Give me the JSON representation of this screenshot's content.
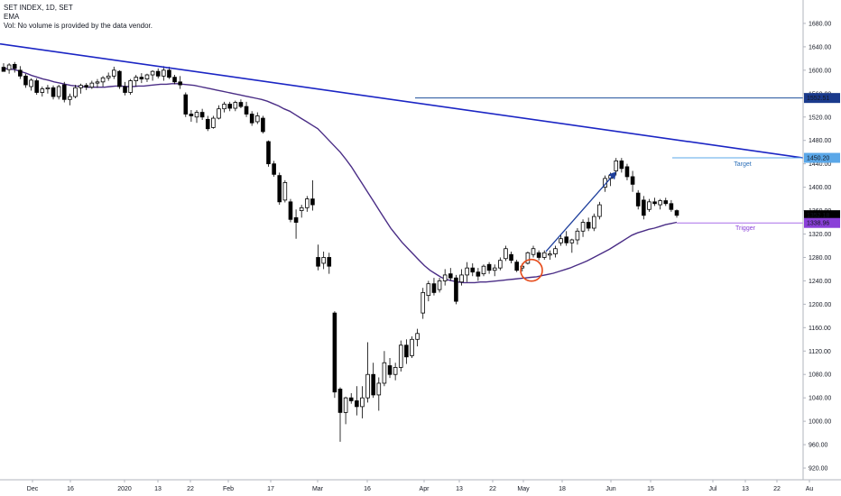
{
  "legend": {
    "symbol": "SET INDEX, 1D, SET",
    "indicator": "EMA",
    "volume_note": "Vol: No volume is provided by the data vendor."
  },
  "colors": {
    "up_candle": "#ffffff",
    "down_candle": "#000000",
    "candle_outline": "#000000",
    "ema_line": "#4a2d86",
    "trend_line": "#1b25c4",
    "level_line": "#1e4f9c",
    "target_line": "#5aa7e8",
    "trigger_line": "#a96ee8",
    "arrow": "#1e3f9c",
    "circle": "#e64a19",
    "price_tag_current": "#000000",
    "price_tag_ema": "#8a3fd8",
    "price_tag_level": "#1a3a8c",
    "price_tag_target": "#5aa7e8"
  },
  "chart_data": {
    "type": "candlestick",
    "title": "SET INDEX, 1D, SET",
    "ylim": [
      900,
      1720
    ],
    "y_ticks": [
      "1680.00",
      "1640.00",
      "1600.00",
      "1560.00",
      "1520.00",
      "1480.00",
      "1440.00",
      "1400.00",
      "1360.00",
      "1320.00",
      "1280.00",
      "1240.00",
      "1200.00",
      "1160.00",
      "1120.00",
      "1080.00",
      "1040.00",
      "1000.00",
      "960.00",
      "920.00"
    ],
    "x_ticks": [
      "Dec",
      "16",
      "2020",
      "13",
      "22",
      "Feb",
      "17",
      "Mar",
      "16",
      "Apr",
      "13",
      "22",
      "May",
      "18",
      "Jun",
      "15",
      "Jul",
      "13",
      "22",
      "Au"
    ],
    "candles": [
      {
        "o": 1605,
        "h": 1612,
        "l": 1600,
        "c": 1598
      },
      {
        "o": 1601,
        "h": 1612,
        "l": 1594,
        "c": 1609
      },
      {
        "o": 1610,
        "h": 1614,
        "l": 1596,
        "c": 1603
      },
      {
        "o": 1600,
        "h": 1607,
        "l": 1585,
        "c": 1590
      },
      {
        "o": 1590,
        "h": 1594,
        "l": 1570,
        "c": 1575
      },
      {
        "o": 1572,
        "h": 1586,
        "l": 1565,
        "c": 1583
      },
      {
        "o": 1582,
        "h": 1586,
        "l": 1558,
        "c": 1562
      },
      {
        "o": 1562,
        "h": 1572,
        "l": 1555,
        "c": 1568
      },
      {
        "o": 1568,
        "h": 1575,
        "l": 1560,
        "c": 1570
      },
      {
        "o": 1570,
        "h": 1574,
        "l": 1550,
        "c": 1555
      },
      {
        "o": 1555,
        "h": 1575,
        "l": 1550,
        "c": 1572
      },
      {
        "o": 1575,
        "h": 1580,
        "l": 1545,
        "c": 1550
      },
      {
        "o": 1550,
        "h": 1560,
        "l": 1540,
        "c": 1555
      },
      {
        "o": 1555,
        "h": 1575,
        "l": 1552,
        "c": 1570
      },
      {
        "o": 1570,
        "h": 1577,
        "l": 1560,
        "c": 1574
      },
      {
        "o": 1574,
        "h": 1578,
        "l": 1566,
        "c": 1571
      },
      {
        "o": 1571,
        "h": 1582,
        "l": 1568,
        "c": 1578
      },
      {
        "o": 1578,
        "h": 1585,
        "l": 1570,
        "c": 1580
      },
      {
        "o": 1580,
        "h": 1590,
        "l": 1572,
        "c": 1587
      },
      {
        "o": 1587,
        "h": 1596,
        "l": 1582,
        "c": 1590
      },
      {
        "o": 1590,
        "h": 1606,
        "l": 1585,
        "c": 1600
      },
      {
        "o": 1598,
        "h": 1600,
        "l": 1568,
        "c": 1572
      },
      {
        "o": 1572,
        "h": 1580,
        "l": 1557,
        "c": 1562
      },
      {
        "o": 1562,
        "h": 1585,
        "l": 1558,
        "c": 1582
      },
      {
        "o": 1582,
        "h": 1592,
        "l": 1572,
        "c": 1588
      },
      {
        "o": 1588,
        "h": 1595,
        "l": 1578,
        "c": 1585
      },
      {
        "o": 1585,
        "h": 1594,
        "l": 1580,
        "c": 1592
      },
      {
        "o": 1592,
        "h": 1600,
        "l": 1582,
        "c": 1598
      },
      {
        "o": 1598,
        "h": 1603,
        "l": 1586,
        "c": 1590
      },
      {
        "o": 1590,
        "h": 1607,
        "l": 1582,
        "c": 1600
      },
      {
        "o": 1600,
        "h": 1606,
        "l": 1585,
        "c": 1588
      },
      {
        "o": 1588,
        "h": 1592,
        "l": 1576,
        "c": 1580
      },
      {
        "o": 1580,
        "h": 1590,
        "l": 1568,
        "c": 1575
      },
      {
        "o": 1558,
        "h": 1562,
        "l": 1520,
        "c": 1525
      },
      {
        "o": 1525,
        "h": 1532,
        "l": 1512,
        "c": 1522
      },
      {
        "o": 1520,
        "h": 1532,
        "l": 1510,
        "c": 1528
      },
      {
        "o": 1528,
        "h": 1534,
        "l": 1515,
        "c": 1520
      },
      {
        "o": 1516,
        "h": 1522,
        "l": 1496,
        "c": 1500
      },
      {
        "o": 1502,
        "h": 1522,
        "l": 1500,
        "c": 1518
      },
      {
        "o": 1518,
        "h": 1540,
        "l": 1516,
        "c": 1534
      },
      {
        "o": 1534,
        "h": 1546,
        "l": 1528,
        "c": 1542
      },
      {
        "o": 1542,
        "h": 1546,
        "l": 1530,
        "c": 1535
      },
      {
        "o": 1535,
        "h": 1548,
        "l": 1530,
        "c": 1545
      },
      {
        "o": 1545,
        "h": 1550,
        "l": 1535,
        "c": 1538
      },
      {
        "o": 1538,
        "h": 1546,
        "l": 1520,
        "c": 1525
      },
      {
        "o": 1525,
        "h": 1530,
        "l": 1505,
        "c": 1510
      },
      {
        "o": 1512,
        "h": 1528,
        "l": 1508,
        "c": 1522
      },
      {
        "o": 1518,
        "h": 1522,
        "l": 1492,
        "c": 1495
      },
      {
        "o": 1478,
        "h": 1480,
        "l": 1435,
        "c": 1440
      },
      {
        "o": 1440,
        "h": 1445,
        "l": 1418,
        "c": 1422
      },
      {
        "o": 1420,
        "h": 1425,
        "l": 1370,
        "c": 1375
      },
      {
        "o": 1378,
        "h": 1412,
        "l": 1374,
        "c": 1408
      },
      {
        "o": 1375,
        "h": 1380,
        "l": 1340,
        "c": 1345
      },
      {
        "o": 1348,
        "h": 1362,
        "l": 1312,
        "c": 1340
      },
      {
        "o": 1360,
        "h": 1370,
        "l": 1348,
        "c": 1365
      },
      {
        "o": 1365,
        "h": 1385,
        "l": 1358,
        "c": 1380
      },
      {
        "o": 1380,
        "h": 1412,
        "l": 1360,
        "c": 1370
      },
      {
        "o": 1280,
        "h": 1302,
        "l": 1258,
        "c": 1265
      },
      {
        "o": 1270,
        "h": 1290,
        "l": 1260,
        "c": 1280
      },
      {
        "o": 1280,
        "h": 1288,
        "l": 1252,
        "c": 1265
      },
      {
        "o": 1185,
        "h": 1188,
        "l": 1040,
        "c": 1050
      },
      {
        "o": 1055,
        "h": 1058,
        "l": 965,
        "c": 1015
      },
      {
        "o": 1015,
        "h": 1042,
        "l": 995,
        "c": 1040
      },
      {
        "o": 1040,
        "h": 1048,
        "l": 1030,
        "c": 1035
      },
      {
        "o": 1035,
        "h": 1060,
        "l": 1010,
        "c": 1025
      },
      {
        "o": 1025,
        "h": 1060,
        "l": 1005,
        "c": 1040
      },
      {
        "o": 1040,
        "h": 1135,
        "l": 1032,
        "c": 1080
      },
      {
        "o": 1080,
        "h": 1100,
        "l": 1040,
        "c": 1045
      },
      {
        "o": 1045,
        "h": 1075,
        "l": 1018,
        "c": 1065
      },
      {
        "o": 1065,
        "h": 1120,
        "l": 1060,
        "c": 1100
      },
      {
        "o": 1095,
        "h": 1108,
        "l": 1074,
        "c": 1080
      },
      {
        "o": 1080,
        "h": 1100,
        "l": 1070,
        "c": 1092
      },
      {
        "o": 1092,
        "h": 1138,
        "l": 1085,
        "c": 1130
      },
      {
        "o": 1130,
        "h": 1140,
        "l": 1098,
        "c": 1110
      },
      {
        "o": 1112,
        "h": 1145,
        "l": 1108,
        "c": 1140
      },
      {
        "o": 1140,
        "h": 1158,
        "l": 1128,
        "c": 1150
      },
      {
        "o": 1185,
        "h": 1228,
        "l": 1175,
        "c": 1220
      },
      {
        "o": 1215,
        "h": 1240,
        "l": 1205,
        "c": 1235
      },
      {
        "o": 1235,
        "h": 1245,
        "l": 1215,
        "c": 1220
      },
      {
        "o": 1225,
        "h": 1245,
        "l": 1220,
        "c": 1240
      },
      {
        "o": 1240,
        "h": 1260,
        "l": 1232,
        "c": 1250
      },
      {
        "o": 1252,
        "h": 1262,
        "l": 1240,
        "c": 1245
      },
      {
        "o": 1245,
        "h": 1250,
        "l": 1200,
        "c": 1205
      },
      {
        "o": 1238,
        "h": 1260,
        "l": 1232,
        "c": 1250
      },
      {
        "o": 1250,
        "h": 1272,
        "l": 1238,
        "c": 1262
      },
      {
        "o": 1262,
        "h": 1270,
        "l": 1248,
        "c": 1255
      },
      {
        "o": 1255,
        "h": 1262,
        "l": 1240,
        "c": 1248
      },
      {
        "o": 1252,
        "h": 1268,
        "l": 1248,
        "c": 1265
      },
      {
        "o": 1268,
        "h": 1272,
        "l": 1252,
        "c": 1258
      },
      {
        "o": 1258,
        "h": 1268,
        "l": 1248,
        "c": 1262
      },
      {
        "o": 1262,
        "h": 1280,
        "l": 1258,
        "c": 1275
      },
      {
        "o": 1278,
        "h": 1300,
        "l": 1274,
        "c": 1295
      },
      {
        "o": 1285,
        "h": 1290,
        "l": 1270,
        "c": 1275
      },
      {
        "o": 1272,
        "h": 1276,
        "l": 1255,
        "c": 1258
      },
      {
        "o": 1262,
        "h": 1270,
        "l": 1256,
        "c": 1265
      },
      {
        "o": 1270,
        "h": 1290,
        "l": 1268,
        "c": 1288
      },
      {
        "o": 1285,
        "h": 1300,
        "l": 1280,
        "c": 1295
      },
      {
        "o": 1288,
        "h": 1292,
        "l": 1275,
        "c": 1280
      },
      {
        "o": 1280,
        "h": 1292,
        "l": 1276,
        "c": 1288
      },
      {
        "o": 1284,
        "h": 1292,
        "l": 1276,
        "c": 1286
      },
      {
        "o": 1286,
        "h": 1300,
        "l": 1280,
        "c": 1295
      },
      {
        "o": 1305,
        "h": 1318,
        "l": 1300,
        "c": 1312
      },
      {
        "o": 1315,
        "h": 1325,
        "l": 1300,
        "c": 1305
      },
      {
        "o": 1305,
        "h": 1312,
        "l": 1288,
        "c": 1310
      },
      {
        "o": 1310,
        "h": 1330,
        "l": 1302,
        "c": 1325
      },
      {
        "o": 1325,
        "h": 1345,
        "l": 1315,
        "c": 1340
      },
      {
        "o": 1340,
        "h": 1348,
        "l": 1325,
        "c": 1330
      },
      {
        "o": 1330,
        "h": 1355,
        "l": 1325,
        "c": 1350
      },
      {
        "o": 1350,
        "h": 1375,
        "l": 1345,
        "c": 1370
      },
      {
        "o": 1400,
        "h": 1420,
        "l": 1392,
        "c": 1415
      },
      {
        "o": 1415,
        "h": 1425,
        "l": 1402,
        "c": 1420
      },
      {
        "o": 1428,
        "h": 1450,
        "l": 1420,
        "c": 1445
      },
      {
        "o": 1445,
        "h": 1450,
        "l": 1425,
        "c": 1432
      },
      {
        "o": 1435,
        "h": 1440,
        "l": 1412,
        "c": 1418
      },
      {
        "o": 1418,
        "h": 1428,
        "l": 1392,
        "c": 1405
      },
      {
        "o": 1390,
        "h": 1395,
        "l": 1362,
        "c": 1368
      },
      {
        "o": 1378,
        "h": 1385,
        "l": 1345,
        "c": 1352
      },
      {
        "o": 1362,
        "h": 1380,
        "l": 1358,
        "c": 1375
      },
      {
        "o": 1375,
        "h": 1382,
        "l": 1368,
        "c": 1372
      },
      {
        "o": 1370,
        "h": 1380,
        "l": 1362,
        "c": 1377
      },
      {
        "o": 1377,
        "h": 1382,
        "l": 1368,
        "c": 1372
      },
      {
        "o": 1372,
        "h": 1378,
        "l": 1358,
        "c": 1362
      },
      {
        "o": 1360,
        "h": 1362,
        "l": 1348,
        "c": 1352
      }
    ],
    "ema": [
      1603,
      1602,
      1601,
      1598,
      1595,
      1591,
      1588,
      1585,
      1583,
      1580,
      1578,
      1576,
      1574,
      1573,
      1572,
      1571,
      1571,
      1571,
      1571,
      1572,
      1573,
      1573,
      1572,
      1572,
      1573,
      1573,
      1574,
      1575,
      1576,
      1576,
      1577,
      1577,
      1576,
      1575,
      1574,
      1572,
      1570,
      1568,
      1566,
      1564,
      1562,
      1560,
      1558,
      1556,
      1554,
      1552,
      1550,
      1547,
      1543,
      1539,
      1534,
      1530,
      1524,
      1518,
      1512,
      1506,
      1500,
      1490,
      1480,
      1470,
      1460,
      1448,
      1435,
      1420,
      1405,
      1390,
      1375,
      1360,
      1345,
      1330,
      1318,
      1306,
      1296,
      1286,
      1276,
      1266,
      1258,
      1252,
      1246,
      1242,
      1240,
      1238,
      1237,
      1237,
      1237,
      1238,
      1238,
      1239,
      1240,
      1241,
      1242,
      1243,
      1244,
      1245,
      1246,
      1247,
      1249,
      1251,
      1253,
      1256,
      1259,
      1262,
      1266,
      1270,
      1274,
      1279,
      1284,
      1289,
      1294,
      1300,
      1306,
      1312,
      1318,
      1322,
      1325,
      1328,
      1330,
      1333,
      1336,
      1338,
      1340
    ],
    "current_price": "1352.18",
    "ema_value": "1338.96",
    "horizontal_level": "1552.51",
    "target_price": "1450.20",
    "annotations": {
      "target_label": "Target",
      "trigger_label": "Trigger"
    }
  }
}
